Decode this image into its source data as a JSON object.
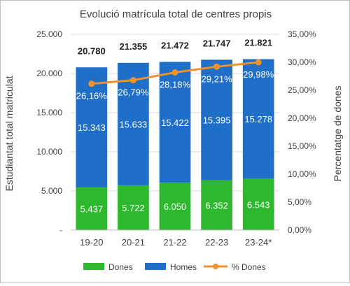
{
  "chart_data": {
    "type": "bar",
    "stacked": true,
    "title": "Evolució matrícula total de centres propis",
    "ylabel": "Estudiantat total matriculat",
    "y2label": "Percentatge de dones",
    "categories": [
      "19-20",
      "20-21",
      "21-22",
      "22-23",
      "23-24*"
    ],
    "ylim": [
      0,
      25000
    ],
    "y2lim": [
      0,
      35
    ],
    "yticks": [
      {
        "value": 0,
        "label": "-"
      },
      {
        "value": 5000,
        "label": "5.000"
      },
      {
        "value": 10000,
        "label": "10.000"
      },
      {
        "value": 15000,
        "label": "15.000"
      },
      {
        "value": 20000,
        "label": "20.000"
      },
      {
        "value": 25000,
        "label": "25.000"
      }
    ],
    "y2ticks": [
      {
        "value": 0,
        "label": "0,00%"
      },
      {
        "value": 5,
        "label": "5,00%"
      },
      {
        "value": 10,
        "label": "10,00%"
      },
      {
        "value": 15,
        "label": "15,00%"
      },
      {
        "value": 20,
        "label": "20,00%"
      },
      {
        "value": 25,
        "label": "25,00%"
      },
      {
        "value": 30,
        "label": "30,00%"
      },
      {
        "value": 35,
        "label": "35,00%"
      }
    ],
    "series": [
      {
        "name": "Dones",
        "type": "bar",
        "color": "#2db82d",
        "values": [
          5437,
          5722,
          6050,
          6352,
          6543
        ],
        "labels": [
          "5.437",
          "5.722",
          "6.050",
          "6.352",
          "6.543"
        ]
      },
      {
        "name": "Homes",
        "type": "bar",
        "color": "#1f6ec8",
        "values": [
          15343,
          15633,
          15422,
          15395,
          15278
        ],
        "labels": [
          "15.343",
          "15.633",
          "15.422",
          "15.395",
          "15.278"
        ]
      },
      {
        "name": "% Dones",
        "type": "line",
        "axis": "right",
        "color": "#f0922b",
        "values": [
          26.16,
          26.79,
          28.18,
          29.21,
          29.98
        ],
        "labels": [
          "26,16%",
          "26,79%",
          "28,18%",
          "29,21%",
          "29,98%"
        ]
      }
    ],
    "totals": {
      "values": [
        20780,
        21355,
        21472,
        21747,
        21821
      ],
      "labels": [
        "20.780",
        "21.355",
        "21.472",
        "21.747",
        "21.821"
      ]
    },
    "grid": true,
    "legend_position": "bottom"
  }
}
